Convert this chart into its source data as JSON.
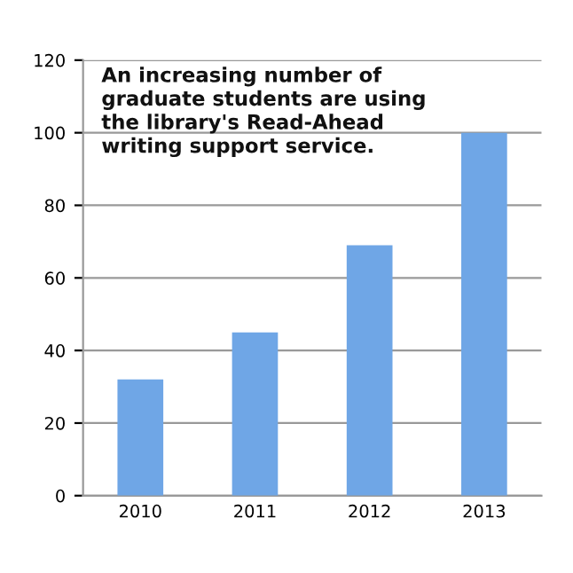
{
  "chart_data": {
    "type": "bar",
    "categories": [
      "2010",
      "2011",
      "2012",
      "2013"
    ],
    "values": [
      32,
      45,
      69,
      100
    ],
    "color": "#6fa6e6",
    "ylim": [
      0,
      120
    ],
    "yticks": [
      0,
      20,
      40,
      60,
      80,
      100,
      120
    ],
    "grid": "y",
    "annotations": [
      "An increasing number of\ngraduate students are using\nthe library's Read-Ahead\nwriting support service."
    ]
  }
}
